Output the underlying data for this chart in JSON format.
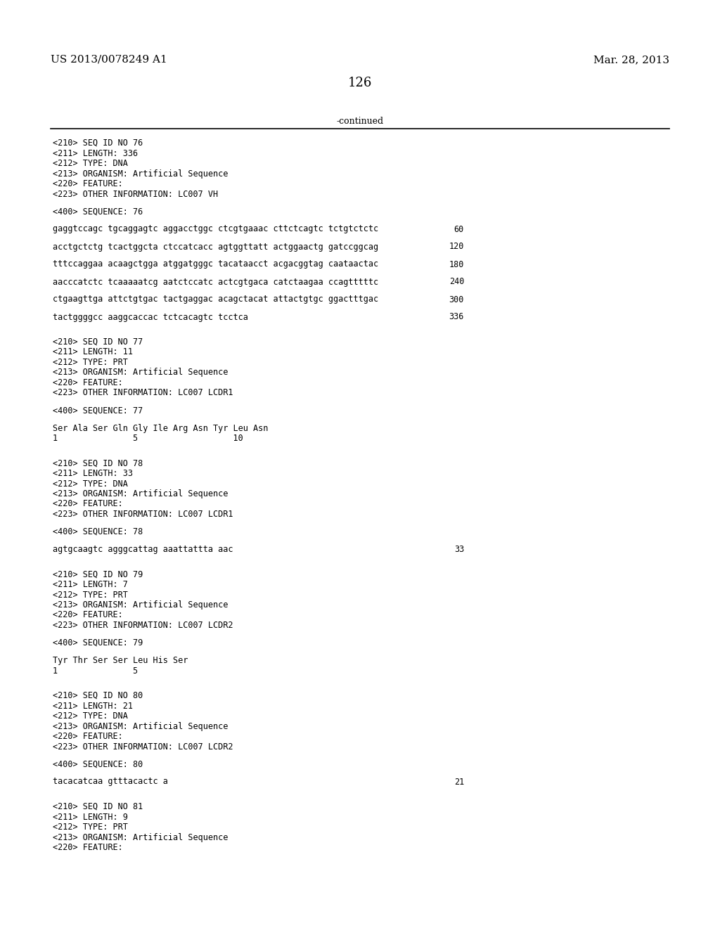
{
  "header_left": "US 2013/0078249 A1",
  "header_right": "Mar. 28, 2013",
  "page_number": "126",
  "continued_text": "-continued",
  "background_color": "#ffffff",
  "text_color": "#000000",
  "content": [
    {
      "type": "meta",
      "lines": [
        "<210> SEQ ID NO 76",
        "<211> LENGTH: 336",
        "<212> TYPE: DNA",
        "<213> ORGANISM: Artificial Sequence",
        "<220> FEATURE:",
        "<223> OTHER INFORMATION: LC007 VH"
      ]
    },
    {
      "type": "blank"
    },
    {
      "type": "seq_label",
      "text": "<400> SEQUENCE: 76"
    },
    {
      "type": "blank"
    },
    {
      "type": "seq_row",
      "seq": "gaggtccagc tgcaggagtc aggacctggc ctcgtgaaac cttctcagtc tctgtctctc",
      "num": "60"
    },
    {
      "type": "blank"
    },
    {
      "type": "seq_row",
      "seq": "acctgctctg tcactggcta ctccatcacc agtggttatt actggaactg gatccggcag",
      "num": "120"
    },
    {
      "type": "blank"
    },
    {
      "type": "seq_row",
      "seq": "tttccaggaa acaagctgga atggatgggc tacataacct acgacggtag caataactac",
      "num": "180"
    },
    {
      "type": "blank"
    },
    {
      "type": "seq_row",
      "seq": "aacccatctc tcaaaaatcg aatctccatc actcgtgaca catctaagaa ccagtttttc",
      "num": "240"
    },
    {
      "type": "blank"
    },
    {
      "type": "seq_row",
      "seq": "ctgaagttga attctgtgac tactgaggac acagctacat attactgtgc ggactttgac",
      "num": "300"
    },
    {
      "type": "blank"
    },
    {
      "type": "seq_row",
      "seq": "tactggggcc aaggcaccac tctcacagtc tcctca",
      "num": "336"
    },
    {
      "type": "blank"
    },
    {
      "type": "blank"
    },
    {
      "type": "meta",
      "lines": [
        "<210> SEQ ID NO 77",
        "<211> LENGTH: 11",
        "<212> TYPE: PRT",
        "<213> ORGANISM: Artificial Sequence",
        "<220> FEATURE:",
        "<223> OTHER INFORMATION: LC007 LCDR1"
      ]
    },
    {
      "type": "blank"
    },
    {
      "type": "seq_label",
      "text": "<400> SEQUENCE: 77"
    },
    {
      "type": "blank"
    },
    {
      "type": "seq_row",
      "seq": "Ser Ala Ser Gln Gly Ile Arg Asn Tyr Leu Asn",
      "num": ""
    },
    {
      "type": "num_row",
      "text": "1               5                   10"
    },
    {
      "type": "blank"
    },
    {
      "type": "blank"
    },
    {
      "type": "meta",
      "lines": [
        "<210> SEQ ID NO 78",
        "<211> LENGTH: 33",
        "<212> TYPE: DNA",
        "<213> ORGANISM: Artificial Sequence",
        "<220> FEATURE:",
        "<223> OTHER INFORMATION: LC007 LCDR1"
      ]
    },
    {
      "type": "blank"
    },
    {
      "type": "seq_label",
      "text": "<400> SEQUENCE: 78"
    },
    {
      "type": "blank"
    },
    {
      "type": "seq_row",
      "seq": "agtgcaagtc agggcattag aaattattta aac",
      "num": "33"
    },
    {
      "type": "blank"
    },
    {
      "type": "blank"
    },
    {
      "type": "meta",
      "lines": [
        "<210> SEQ ID NO 79",
        "<211> LENGTH: 7",
        "<212> TYPE: PRT",
        "<213> ORGANISM: Artificial Sequence",
        "<220> FEATURE:",
        "<223> OTHER INFORMATION: LC007 LCDR2"
      ]
    },
    {
      "type": "blank"
    },
    {
      "type": "seq_label",
      "text": "<400> SEQUENCE: 79"
    },
    {
      "type": "blank"
    },
    {
      "type": "seq_row",
      "seq": "Tyr Thr Ser Ser Leu His Ser",
      "num": ""
    },
    {
      "type": "num_row",
      "text": "1               5"
    },
    {
      "type": "blank"
    },
    {
      "type": "blank"
    },
    {
      "type": "meta",
      "lines": [
        "<210> SEQ ID NO 80",
        "<211> LENGTH: 21",
        "<212> TYPE: DNA",
        "<213> ORGANISM: Artificial Sequence",
        "<220> FEATURE:",
        "<223> OTHER INFORMATION: LC007 LCDR2"
      ]
    },
    {
      "type": "blank"
    },
    {
      "type": "seq_label",
      "text": "<400> SEQUENCE: 80"
    },
    {
      "type": "blank"
    },
    {
      "type": "seq_row",
      "seq": "tacacatcaa gtttacactc a",
      "num": "21"
    },
    {
      "type": "blank"
    },
    {
      "type": "blank"
    },
    {
      "type": "meta",
      "lines": [
        "<210> SEQ ID NO 81",
        "<211> LENGTH: 9",
        "<212> TYPE: PRT",
        "<213> ORGANISM: Artificial Sequence",
        "<220> FEATURE:"
      ]
    }
  ]
}
